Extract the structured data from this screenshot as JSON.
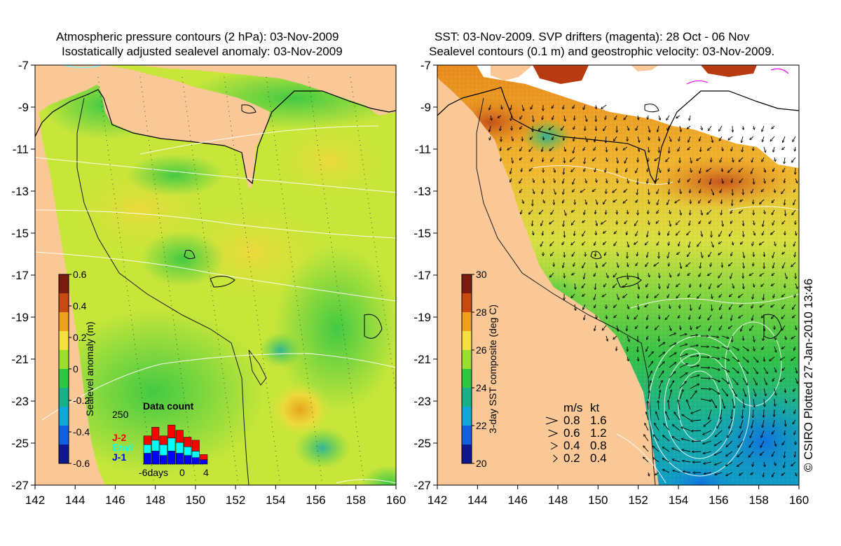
{
  "left_panel": {
    "title_line1": "Atmospheric pressure contours (2 hPa): 03-Nov-2009",
    "title_line2": "Isostatically adjusted sealevel anomaly: 03-Nov-2009",
    "colorbar": {
      "label": "Sealevel anomaly (m)",
      "ticks": [
        "0.6",
        "0.4",
        "0.2",
        "0",
        "-0.2",
        "-0.4",
        "-0.6"
      ],
      "stops": [
        "#7a1a10",
        "#c84a10",
        "#f0a020",
        "#f4e040",
        "#9adf30",
        "#2ec840",
        "#18b088",
        "#10a8d8",
        "#1060e0",
        "#101890"
      ]
    },
    "data_count": {
      "title": "Data count",
      "ymax_label": "250",
      "x_labels": [
        "-6days",
        "0",
        "4"
      ],
      "legend": [
        {
          "label": "J-2",
          "color": "#ff0000"
        },
        {
          "label": "Envi",
          "color": "#00ffff"
        },
        {
          "label": "J-1",
          "color": "#0000ff"
        }
      ]
    }
  },
  "right_panel": {
    "title_line1": "SST: 03-Nov-2009. SVP drifters (magenta): 28 Oct - 06 Nov",
    "title_line2": "Sealevel contours (0.1 m) and geostrophic velocity: 03-Nov-2009.",
    "colorbar": {
      "label": "3-day SST composite (deg C)",
      "ticks": [
        "30",
        "28",
        "26",
        "24",
        "22",
        "20"
      ],
      "stops": [
        "#7a1a10",
        "#c84a10",
        "#f0a020",
        "#f4e040",
        "#9adf30",
        "#2ec840",
        "#18b088",
        "#10a8d8",
        "#1060e0",
        "#101890"
      ]
    },
    "velocity_legend": {
      "header_ms": "m/s",
      "header_kt": "kt",
      "rows": [
        {
          "ms": "0.8",
          "kt": "1.6"
        },
        {
          "ms": "0.6",
          "kt": "1.2"
        },
        {
          "ms": "0.4",
          "kt": "0.8"
        },
        {
          "ms": "0.2",
          "kt": "0.4"
        }
      ]
    }
  },
  "axes": {
    "x_ticks": [
      "142",
      "144",
      "146",
      "148",
      "150",
      "152",
      "154",
      "156",
      "158",
      "160"
    ],
    "y_ticks": [
      "-7",
      "-9",
      "-11",
      "-13",
      "-15",
      "-17",
      "-19",
      "-21",
      "-23",
      "-25",
      "-27"
    ]
  },
  "credit": "© CSIRO Plotted 27-Jan-2010 13:46",
  "colors": {
    "land": "#f9c896",
    "cloud": "#ffffff"
  }
}
